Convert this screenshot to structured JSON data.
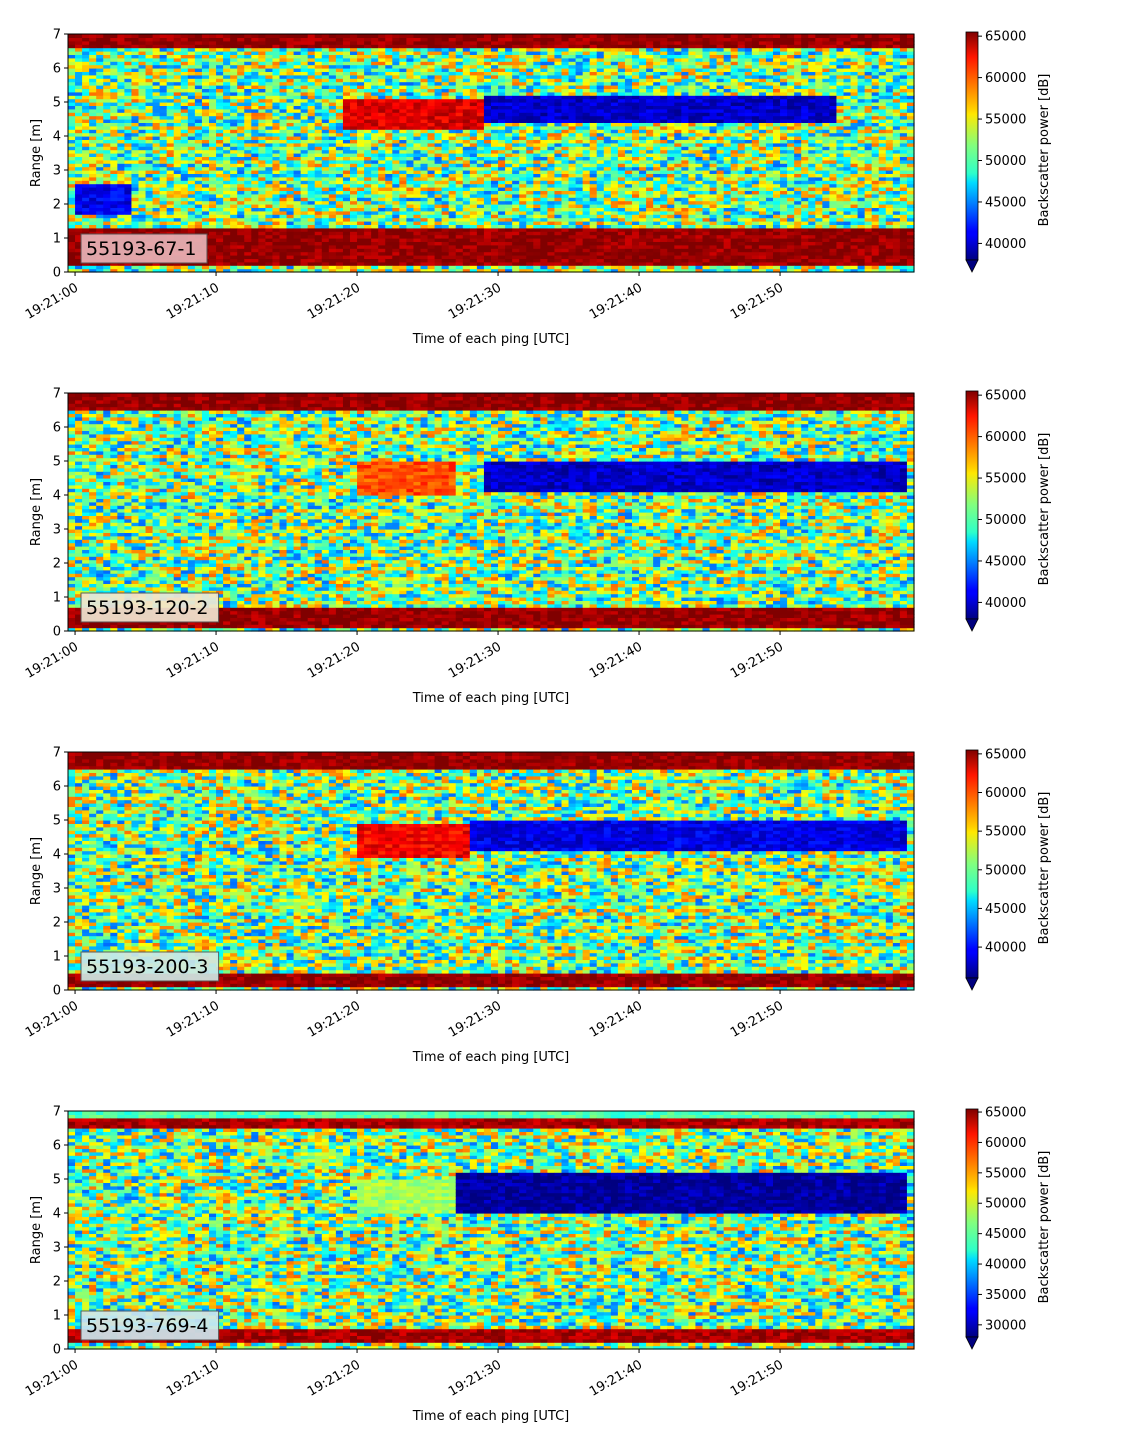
{
  "figure": {
    "xlabel": "Time of each ping [UTC]",
    "ylabel": "Range [m]",
    "colorbar_label": "Backscatter power [dB]",
    "colormap": "jet"
  },
  "chart_data": [
    {
      "type": "heatmap",
      "label": "55193-67-1",
      "label_box_color": "#e8b4b8",
      "xlabel": "Time of each ping [UTC]",
      "ylabel": "Range [m]",
      "x_ticks": [
        "19:21:00",
        "19:21:10",
        "19:21:20",
        "19:21:30",
        "19:21:40",
        "19:21:50"
      ],
      "x_range_seconds": [
        -0.5,
        59.5
      ],
      "y_ticks": [
        0,
        1,
        2,
        3,
        4,
        5,
        6,
        7
      ],
      "ylim": [
        0,
        7
      ],
      "colorbar": {
        "label": "Backscatter power [dB]",
        "ticks": [
          40000,
          45000,
          50000,
          55000,
          60000,
          65000
        ],
        "range": [
          38000,
          65500
        ]
      },
      "features": [
        {
          "kind": "band",
          "from": 0.2,
          "to": 1.3,
          "value": 65000
        },
        {
          "kind": "band",
          "from": 6.55,
          "to": 7.0,
          "value": 65000
        },
        {
          "kind": "patch",
          "t0": 19,
          "t1": 29,
          "from": 4.2,
          "to": 5.1,
          "value": 63000
        },
        {
          "kind": "patch",
          "t0": 29,
          "t1": 54,
          "from": 4.4,
          "to": 5.2,
          "value": 40000
        },
        {
          "kind": "patch",
          "t0": 0,
          "t1": 4,
          "from": 1.7,
          "to": 2.6,
          "value": 41000
        }
      ]
    },
    {
      "type": "heatmap",
      "label": "55193-120-2",
      "label_box_color": "#f0e6d2",
      "xlabel": "Time of each ping [UTC]",
      "ylabel": "Range [m]",
      "x_ticks": [
        "19:21:00",
        "19:21:10",
        "19:21:20",
        "19:21:30",
        "19:21:40",
        "19:21:50"
      ],
      "x_range_seconds": [
        -0.5,
        59.5
      ],
      "y_ticks": [
        0,
        1,
        2,
        3,
        4,
        5,
        6,
        7
      ],
      "ylim": [
        0,
        7
      ],
      "colorbar": {
        "label": "Backscatter power [dB]",
        "ticks": [
          40000,
          45000,
          50000,
          55000,
          60000,
          65000
        ],
        "range": [
          38000,
          65500
        ]
      },
      "features": [
        {
          "kind": "band",
          "from": 0.1,
          "to": 0.7,
          "value": 65000
        },
        {
          "kind": "band",
          "from": 6.5,
          "to": 7.0,
          "value": 65000
        },
        {
          "kind": "patch",
          "t0": 20,
          "t1": 27,
          "from": 4.0,
          "to": 5.0,
          "value": 60000
        },
        {
          "kind": "patch",
          "t0": 29,
          "t1": 59,
          "from": 4.1,
          "to": 5.0,
          "value": 40000
        }
      ]
    },
    {
      "type": "heatmap",
      "label": "55193-200-3",
      "label_box_color": "#cfe8e4",
      "xlabel": "Time of each ping [UTC]",
      "ylabel": "Range [m]",
      "x_ticks": [
        "19:21:00",
        "19:21:10",
        "19:21:20",
        "19:21:30",
        "19:21:40",
        "19:21:50"
      ],
      "x_range_seconds": [
        -0.5,
        59.5
      ],
      "y_ticks": [
        0,
        1,
        2,
        3,
        4,
        5,
        6,
        7
      ],
      "ylim": [
        0,
        7
      ],
      "colorbar": {
        "label": "Backscatter power [dB]",
        "ticks": [
          40000,
          45000,
          50000,
          55000,
          60000,
          65000
        ],
        "range": [
          36000,
          65500
        ]
      },
      "features": [
        {
          "kind": "band",
          "from": 0.1,
          "to": 0.5,
          "value": 65000
        },
        {
          "kind": "band",
          "from": 6.5,
          "to": 6.95,
          "value": 65000
        },
        {
          "kind": "patch",
          "t0": 20,
          "t1": 28,
          "from": 3.9,
          "to": 4.9,
          "value": 62000
        },
        {
          "kind": "patch",
          "t0": 28,
          "t1": 59,
          "from": 4.1,
          "to": 5.0,
          "value": 39000
        }
      ]
    },
    {
      "type": "heatmap",
      "label": "55193-769-4",
      "label_box_color": "#cde7ee",
      "xlabel": "Time of each ping [UTC]",
      "ylabel": "Range [m]",
      "x_ticks": [
        "19:21:00",
        "19:21:10",
        "19:21:20",
        "19:21:30",
        "19:21:40",
        "19:21:50"
      ],
      "x_range_seconds": [
        -0.5,
        59.5
      ],
      "y_ticks": [
        0,
        1,
        2,
        3,
        4,
        5,
        6,
        7
      ],
      "ylim": [
        0,
        7
      ],
      "colorbar": {
        "label": "Backscatter power [dB]",
        "ticks": [
          30000,
          35000,
          40000,
          45000,
          50000,
          55000,
          60000,
          65000
        ],
        "range": [
          28000,
          65500
        ]
      },
      "features": [
        {
          "kind": "band",
          "from": 0.2,
          "to": 0.6,
          "value": 64000
        },
        {
          "kind": "band",
          "from": 6.45,
          "to": 6.75,
          "value": 64000
        },
        {
          "kind": "band",
          "from": 6.75,
          "to": 7.0,
          "value": 45000
        },
        {
          "kind": "patch",
          "t0": 20,
          "t1": 27,
          "from": 4.0,
          "to": 5.0,
          "value": 48000
        },
        {
          "kind": "patch",
          "t0": 27,
          "t1": 59,
          "from": 4.0,
          "to": 5.2,
          "value": 29000
        }
      ]
    }
  ]
}
